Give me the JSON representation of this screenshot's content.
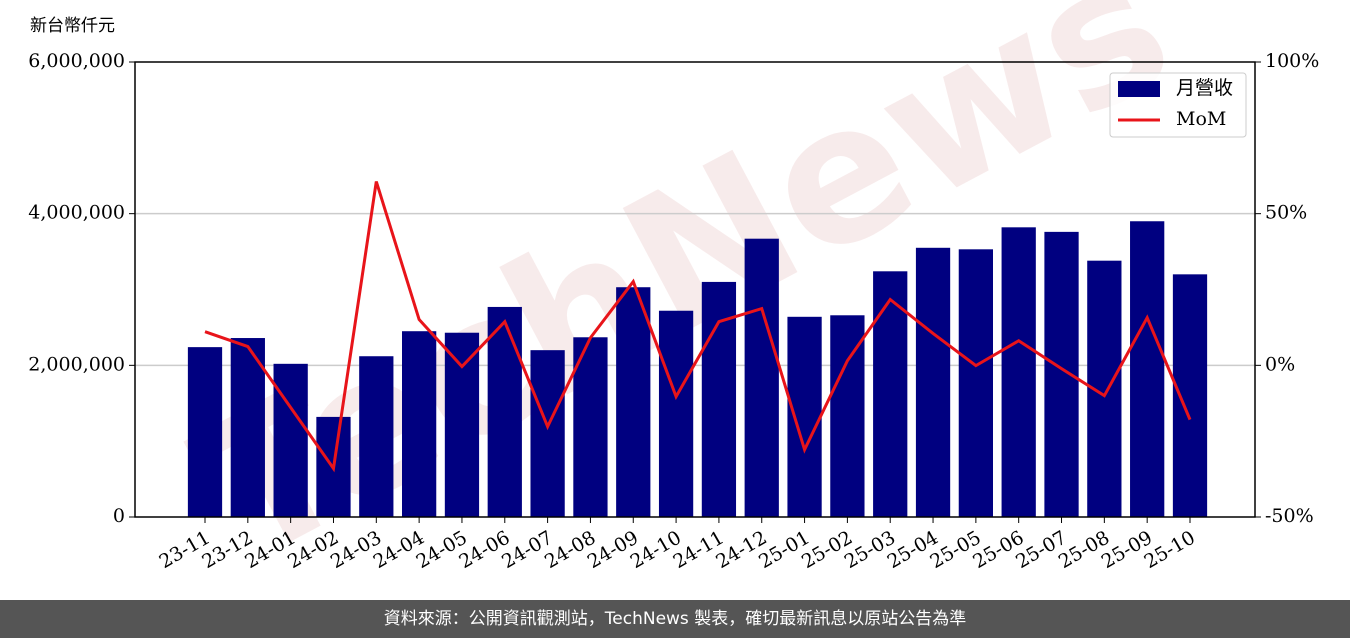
{
  "chart_data": {
    "type": "bar-line",
    "y_label": "新台幣仟元",
    "watermark": "TechNews",
    "footer": "資料來源：公開資訊觀測站，TechNews 製表，確切最新訊息以原站公告為準",
    "categories": [
      "23-11",
      "23-12",
      "24-01",
      "24-02",
      "24-03",
      "24-04",
      "24-05",
      "24-06",
      "24-07",
      "24-08",
      "24-09",
      "24-10",
      "24-11",
      "24-12",
      "25-01",
      "25-02",
      "25-03",
      "25-04",
      "25-05",
      "25-06",
      "25-07",
      "25-08",
      "25-09",
      "25-10"
    ],
    "series": [
      {
        "name": "月營收",
        "type": "bar",
        "color": "#000080",
        "values": [
          2240000,
          2360000,
          2020000,
          1320000,
          2120000,
          2450000,
          2430000,
          2770000,
          2200000,
          2370000,
          3030000,
          2720000,
          3100000,
          3670000,
          2640000,
          2660000,
          3240000,
          3550000,
          3530000,
          3820000,
          3760000,
          3380000,
          3900000,
          3200000
        ]
      },
      {
        "name": "MoM",
        "type": "line",
        "color": "#e8141a",
        "axis": "y2",
        "values": [
          11.1,
          6.2,
          -13.9,
          -34,
          60.6,
          15.1,
          -0.4,
          14.4,
          -20.2,
          9.1,
          27.6,
          -10.3,
          14.4,
          18.7,
          -27.8,
          1.5,
          21.7,
          10.5,
          -0.1,
          8.1,
          -1.1,
          -10,
          15.7,
          -17.9
        ]
      }
    ],
    "ylim": [
      0,
      6000000
    ],
    "yticks": [
      0,
      {
        "value": 2000000,
        "label": "2,000,000"
      },
      {
        "value": 4000000,
        "label": "4,000,000"
      },
      {
        "value": 6000000,
        "label": "6,000,000"
      }
    ],
    "y2lim": [
      -50,
      100
    ],
    "y2ticks": [
      {
        "value": -50,
        "label": "-50%"
      },
      {
        "value": 0,
        "label": "0%"
      },
      {
        "value": 50,
        "label": "50%"
      },
      {
        "value": 100,
        "label": "100%"
      }
    ],
    "grid": true,
    "legend": "upper right"
  }
}
